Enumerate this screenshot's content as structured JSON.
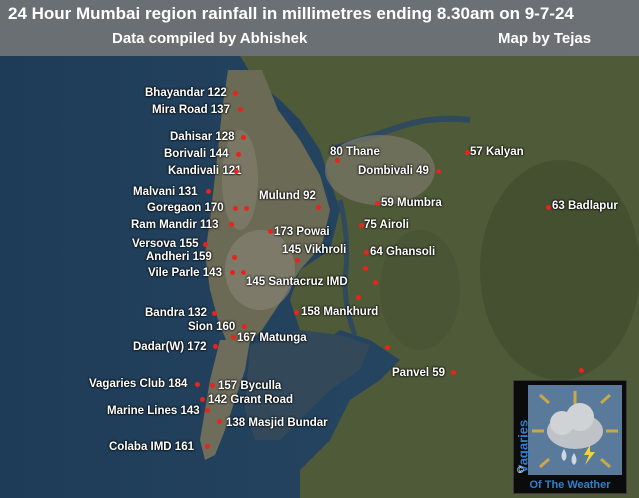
{
  "title": {
    "line1": "24 Hour Mumbai region rainfall in millimetres ending 8.30am on 9-7-24",
    "credit_data": "Data compiled by Abhishek",
    "credit_map": "Map by Tejas"
  },
  "stations": [
    {
      "label": "Bhayandar 122"
    },
    {
      "label": "Mira Road 137"
    },
    {
      "label": "Dahisar 128"
    },
    {
      "label": "Borivali 144"
    },
    {
      "label": "Kandivali 121"
    },
    {
      "label": "Malvani 131"
    },
    {
      "label": "Goregaon 170"
    },
    {
      "label": "Ram Mandir 113"
    },
    {
      "label": "Versova 155"
    },
    {
      "label": "Andheri 159"
    },
    {
      "label": "Vile Parle 143"
    },
    {
      "label": "Bandra 132"
    },
    {
      "label": "Sion 160"
    },
    {
      "label": "Dadar(W) 172"
    },
    {
      "label": "Vagaries Club 184"
    },
    {
      "label": "Marine Lines 143"
    },
    {
      "label": "Colaba IMD 161"
    },
    {
      "label": "80 Thane"
    },
    {
      "label": "Mulund 92"
    },
    {
      "label": "173 Powai"
    },
    {
      "label": "145 Vikhroli"
    },
    {
      "label": "145 Santacruz IMD"
    },
    {
      "label": "158 Mankhurd"
    },
    {
      "label": "167 Matunga"
    },
    {
      "label": "157 Byculla"
    },
    {
      "label": "142 Grant Road"
    },
    {
      "label": "138 Masjid Bundar"
    },
    {
      "label": "Dombivali 49"
    },
    {
      "label": "57 Kalyan"
    },
    {
      "label": "59 Mumbra"
    },
    {
      "label": "75 Airoli"
    },
    {
      "label": "64 Ghansoli"
    },
    {
      "label": "63 Badlapur"
    },
    {
      "label": "Panvel 59"
    }
  ],
  "logo": {
    "side_text": "Vagaries",
    "copyright": "©",
    "bottom_text": "Of The Weather",
    "icon": "cloud-rain-lightning-icon"
  },
  "colors": {
    "marker": "#e8241c",
    "logo_text": "#2f80d0"
  }
}
